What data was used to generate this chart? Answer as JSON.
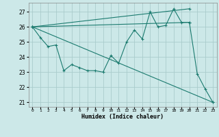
{
  "title": "",
  "xlabel": "Humidex (Indice chaleur)",
  "background_color": "#cce8e8",
  "grid_color": "#aacccc",
  "line_color": "#1a7a6e",
  "xlim": [
    -0.5,
    23.5
  ],
  "ylim": [
    20.7,
    27.6
  ],
  "yticks": [
    21,
    22,
    23,
    24,
    25,
    26,
    27
  ],
  "xticks": [
    0,
    1,
    2,
    3,
    4,
    5,
    6,
    7,
    8,
    9,
    10,
    11,
    12,
    13,
    14,
    15,
    16,
    17,
    18,
    19,
    20,
    21,
    22,
    23
  ],
  "line_data": {
    "x": [
      0,
      1,
      2,
      3,
      4,
      5,
      6,
      7,
      8,
      9,
      10,
      11,
      12,
      13,
      14,
      15,
      16,
      17,
      18,
      19,
      20,
      21,
      22,
      23
    ],
    "y": [
      26.0,
      25.3,
      24.7,
      24.8,
      23.1,
      23.5,
      23.3,
      23.1,
      23.1,
      23.0,
      24.1,
      23.6,
      25.0,
      25.8,
      25.2,
      27.0,
      26.0,
      26.1,
      27.2,
      26.3,
      26.3,
      22.9,
      21.9,
      21.0
    ]
  },
  "trend_lines": [
    {
      "x": [
        0,
        20
      ],
      "y": [
        26.0,
        26.3
      ]
    },
    {
      "x": [
        0,
        20
      ],
      "y": [
        26.0,
        27.2
      ]
    },
    {
      "x": [
        0,
        23
      ],
      "y": [
        26.0,
        21.0
      ]
    }
  ]
}
